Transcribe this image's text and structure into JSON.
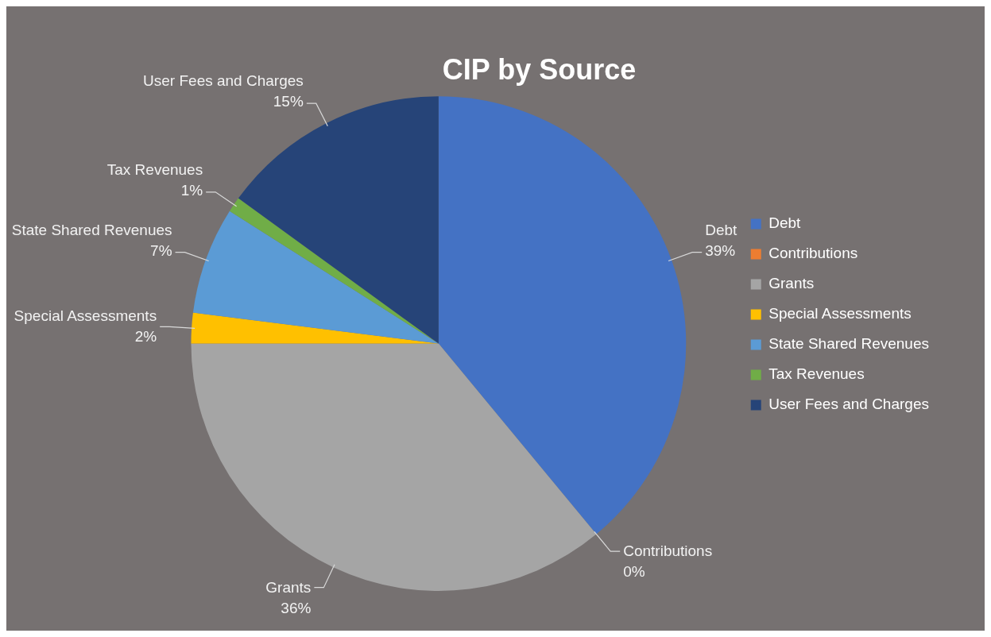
{
  "chart_data": {
    "type": "pie",
    "title": "CIP by Source",
    "categories": [
      "Debt",
      "Contributions",
      "Grants",
      "Special Assessments",
      "State Shared Revenues",
      "Tax Revenues",
      "User Fees and Charges"
    ],
    "values": [
      39,
      0,
      36,
      2,
      7,
      1,
      15
    ],
    "colors": [
      "#4472c4",
      "#ed7d31",
      "#a5a5a5",
      "#ffc000",
      "#5b9bd5",
      "#70ad47",
      "#264478"
    ],
    "value_labels": [
      "39%",
      "0%",
      "36%",
      "2%",
      "7%",
      "1%",
      "15%"
    ],
    "legend": "right"
  }
}
